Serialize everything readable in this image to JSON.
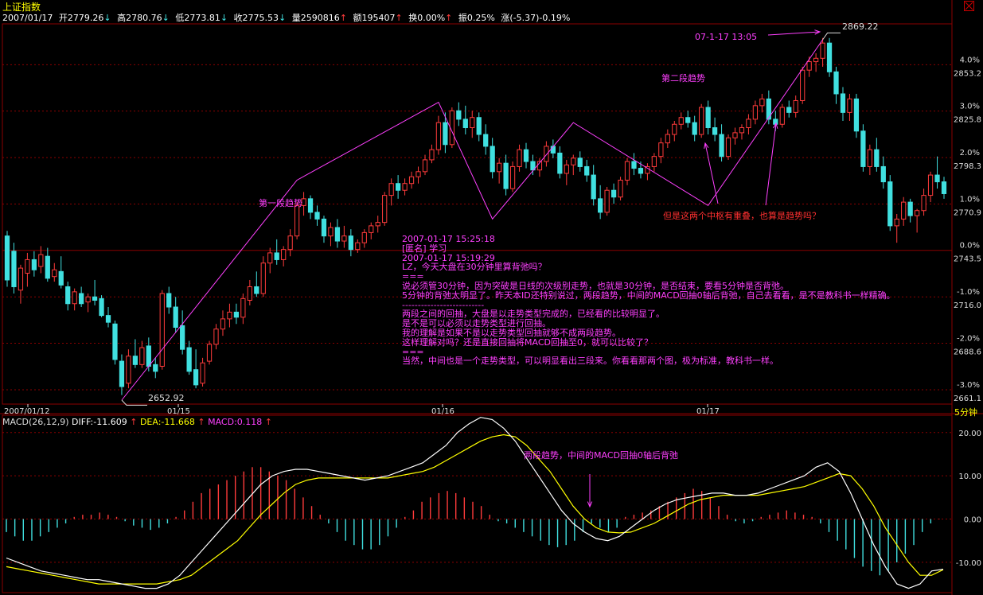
{
  "header": {
    "title": "上证指数",
    "date": "2007/01/17",
    "open_label": "开2779.26",
    "high_label": "高2780.76",
    "low_label": "低2773.81",
    "close_label": "收2775.53",
    "volume_label": "量2590816",
    "amount_label": "额195407",
    "turnover_label": "换0.00%",
    "amplitude_label": "振0.25%",
    "change_label": "涨(-5.37)-0.19%"
  },
  "colors": {
    "up": "#ff3b3b",
    "down": "#40e0e0",
    "grid": "#8b0000",
    "annotation": "#ff40ff",
    "note_red": "#ff3030",
    "axis_text": "#dddddd",
    "diff_line": "#ffffff",
    "dea_line": "#ffff00"
  },
  "annotations": {
    "low_price": "2652.92",
    "high_price": "2869.22",
    "high_time": "07-1-17  13:05",
    "first_trend": "第一段趋势",
    "second_trend": "第二段趋势",
    "hub_question": "但是这两个中枢有重叠，也算是趋势吗？",
    "macd_note": "两段趋势，中间的MACD回抽0轴后背弛"
  },
  "comment_lines": [
    "2007-01-17 15:25:18",
    "[匿名] 学习",
    "2007-01-17 15:19:29",
    "LZ，今天大盘在30分钟里算背弛吗？",
    "===",
    "说必须管30分钟，因为突破是日线的次级别走势，也就是30分钟，是否结束，要看5分钟是否背弛。",
    "5分钟的背弛太明显了。昨天本ID还特别说过，两段趋势，中间的MACD回抽0轴后背弛，自己去看看，是不是教科书一样精确。",
    "--------------------------",
    "两段之间的回抽，大盘是以走势类型完成的，已经看的比较明显了。",
    "是不是可以必须以走势类型进行回抽。",
    "我的理解是如果不是以走势类型回抽就够不成两段趋势。",
    "这样理解对吗？还是直接回抽将MACD回抽至0，就可以比较了？",
    "",
    "===",
    "当然，中间也是一个走势类型，可以明显看出三段来。你看看那两个图，极为标准，教科书一样。"
  ],
  "macd_header": {
    "name": "MACD(26,12,9)",
    "diff": "DIFF:-11.609",
    "dea": "DEA:-11.668",
    "macd": "MACD:0.118"
  },
  "period_label": "5分钟",
  "chart_data": [
    {
      "type": "candlestick",
      "title": "上证指数",
      "ylim": [
        2655,
        2875
      ],
      "right_axis_prices": [
        "2853.2",
        "2825.8",
        "2798.3",
        "2770.9",
        "2743.5",
        "2716.0",
        "2688.6",
        "2661.1"
      ],
      "right_axis_percents": [
        "4.0%",
        "3.0%",
        "2.0%",
        "1.0%",
        "0.0%",
        "-1.0%",
        "-2.0%",
        "-3.0%"
      ],
      "x_ticks": [
        "2007/01/12",
        "01/15",
        "01/16",
        "01/17"
      ],
      "trend_path": [
        2655,
        2785,
        2831,
        2762,
        2819,
        2770,
        2868
      ],
      "ohlc": [
        [
          2752,
          2755,
          2722,
          2726
        ],
        [
          2743,
          2748,
          2718,
          2722
        ],
        [
          2720,
          2735,
          2712,
          2733
        ],
        [
          2730,
          2742,
          2722,
          2738
        ],
        [
          2738,
          2743,
          2728,
          2732
        ],
        [
          2734,
          2746,
          2730,
          2741
        ],
        [
          2740,
          2745,
          2725,
          2727
        ],
        [
          2728,
          2736,
          2725,
          2732
        ],
        [
          2731,
          2740,
          2721,
          2723
        ],
        [
          2722,
          2725,
          2708,
          2712
        ],
        [
          2712,
          2721,
          2708,
          2719
        ],
        [
          2718,
          2722,
          2710,
          2712
        ],
        [
          2713,
          2718,
          2707,
          2716
        ],
        [
          2716,
          2726,
          2711,
          2714
        ],
        [
          2715,
          2717,
          2704,
          2705
        ],
        [
          2705,
          2710,
          2698,
          2701
        ],
        [
          2700,
          2702,
          2676,
          2679
        ],
        [
          2678,
          2682,
          2658,
          2663
        ],
        [
          2665,
          2685,
          2662,
          2681
        ],
        [
          2681,
          2691,
          2674,
          2676
        ],
        [
          2676,
          2690,
          2674,
          2686
        ],
        [
          2687,
          2692,
          2672,
          2675
        ],
        [
          2676,
          2680,
          2668,
          2672
        ],
        [
          2675,
          2720,
          2673,
          2718
        ],
        [
          2718,
          2722,
          2706,
          2710
        ],
        [
          2710,
          2716,
          2695,
          2698
        ],
        [
          2699,
          2708,
          2682,
          2685
        ],
        [
          2686,
          2690,
          2670,
          2672
        ],
        [
          2673,
          2685,
          2662,
          2664
        ],
        [
          2665,
          2680,
          2663,
          2677
        ],
        [
          2678,
          2690,
          2676,
          2688
        ],
        [
          2688,
          2700,
          2685,
          2697
        ],
        [
          2697,
          2708,
          2693,
          2703
        ],
        [
          2703,
          2712,
          2698,
          2707
        ],
        [
          2707,
          2712,
          2700,
          2704
        ],
        [
          2704,
          2718,
          2700,
          2715
        ],
        [
          2714,
          2726,
          2711,
          2722
        ],
        [
          2722,
          2731,
          2716,
          2718
        ],
        [
          2718,
          2740,
          2716,
          2736
        ],
        [
          2736,
          2745,
          2730,
          2742
        ],
        [
          2742,
          2750,
          2735,
          2738
        ],
        [
          2738,
          2746,
          2734,
          2744
        ],
        [
          2744,
          2756,
          2740,
          2752
        ],
        [
          2752,
          2772,
          2750,
          2770
        ],
        [
          2770,
          2778,
          2764,
          2774
        ],
        [
          2774,
          2776,
          2762,
          2766
        ],
        [
          2766,
          2770,
          2758,
          2762
        ],
        [
          2762,
          2764,
          2748,
          2752
        ],
        [
          2752,
          2760,
          2746,
          2757
        ],
        [
          2757,
          2762,
          2745,
          2749
        ],
        [
          2749,
          2758,
          2745,
          2752
        ],
        [
          2752,
          2756,
          2740,
          2744
        ],
        [
          2744,
          2750,
          2742,
          2748
        ],
        [
          2748,
          2756,
          2745,
          2754
        ],
        [
          2754,
          2760,
          2750,
          2758
        ],
        [
          2758,
          2764,
          2754,
          2760
        ],
        [
          2760,
          2778,
          2758,
          2776
        ],
        [
          2776,
          2786,
          2770,
          2783
        ],
        [
          2783,
          2788,
          2774,
          2779
        ],
        [
          2779,
          2786,
          2776,
          2783
        ],
        [
          2783,
          2790,
          2780,
          2787
        ],
        [
          2787,
          2793,
          2783,
          2790
        ],
        [
          2790,
          2800,
          2788,
          2797
        ],
        [
          2797,
          2806,
          2795,
          2803
        ],
        [
          2803,
          2823,
          2800,
          2819
        ],
        [
          2819,
          2825,
          2801,
          2806
        ],
        [
          2806,
          2828,
          2804,
          2826
        ],
        [
          2826,
          2831,
          2817,
          2821
        ],
        [
          2821,
          2829,
          2812,
          2816
        ],
        [
          2816,
          2826,
          2810,
          2822
        ],
        [
          2822,
          2825,
          2808,
          2812
        ],
        [
          2812,
          2818,
          2800,
          2805
        ],
        [
          2805,
          2810,
          2786,
          2790
        ],
        [
          2790,
          2798,
          2783,
          2795
        ],
        [
          2795,
          2800,
          2776,
          2780
        ],
        [
          2780,
          2796,
          2778,
          2793
        ],
        [
          2793,
          2806,
          2790,
          2803
        ],
        [
          2803,
          2807,
          2792,
          2796
        ],
        [
          2796,
          2800,
          2788,
          2791
        ],
        [
          2791,
          2798,
          2787,
          2796
        ],
        [
          2796,
          2808,
          2793,
          2805
        ],
        [
          2805,
          2809,
          2798,
          2801
        ],
        [
          2801,
          2805,
          2786,
          2789
        ],
        [
          2789,
          2797,
          2782,
          2794
        ],
        [
          2794,
          2800,
          2788,
          2798
        ],
        [
          2798,
          2802,
          2790,
          2793
        ],
        [
          2793,
          2797,
          2784,
          2788
        ],
        [
          2788,
          2794,
          2770,
          2774
        ],
        [
          2774,
          2782,
          2762,
          2766
        ],
        [
          2766,
          2781,
          2764,
          2779
        ],
        [
          2779,
          2783,
          2771,
          2775
        ],
        [
          2775,
          2787,
          2773,
          2785
        ],
        [
          2785,
          2798,
          2782,
          2796
        ],
        [
          2796,
          2801,
          2788,
          2792
        ],
        [
          2792,
          2796,
          2786,
          2789
        ],
        [
          2789,
          2795,
          2785,
          2793
        ],
        [
          2793,
          2801,
          2790,
          2799
        ],
        [
          2799,
          2810,
          2795,
          2807
        ],
        [
          2807,
          2815,
          2804,
          2812
        ],
        [
          2812,
          2820,
          2808,
          2818
        ],
        [
          2818,
          2825,
          2815,
          2822
        ],
        [
          2822,
          2826,
          2816,
          2819
        ],
        [
          2819,
          2823,
          2808,
          2812
        ],
        [
          2812,
          2830,
          2810,
          2828
        ],
        [
          2828,
          2832,
          2812,
          2816
        ],
        [
          2816,
          2822,
          2808,
          2812
        ],
        [
          2812,
          2818,
          2796,
          2799
        ],
        [
          2799,
          2812,
          2797,
          2810
        ],
        [
          2810,
          2816,
          2806,
          2813
        ],
        [
          2813,
          2818,
          2809,
          2816
        ],
        [
          2816,
          2824,
          2812,
          2821
        ],
        [
          2821,
          2832,
          2818,
          2829
        ],
        [
          2829,
          2836,
          2825,
          2833
        ],
        [
          2833,
          2838,
          2818,
          2821
        ],
        [
          2821,
          2826,
          2814,
          2818
        ],
        [
          2818,
          2830,
          2816,
          2828
        ],
        [
          2828,
          2832,
          2822,
          2825
        ],
        [
          2825,
          2835,
          2822,
          2832
        ],
        [
          2832,
          2852,
          2830,
          2850
        ],
        [
          2850,
          2858,
          2846,
          2855
        ],
        [
          2855,
          2860,
          2849,
          2857
        ],
        [
          2857,
          2869,
          2852,
          2866
        ],
        [
          2866,
          2869,
          2846,
          2849
        ],
        [
          2849,
          2852,
          2830,
          2836
        ],
        [
          2836,
          2840,
          2820,
          2825
        ],
        [
          2825,
          2836,
          2820,
          2833
        ],
        [
          2833,
          2836,
          2810,
          2814
        ],
        [
          2814,
          2818,
          2790,
          2793
        ],
        [
          2793,
          2806,
          2788,
          2803
        ],
        [
          2803,
          2810,
          2790,
          2793
        ],
        [
          2793,
          2799,
          2780,
          2784
        ],
        [
          2784,
          2788,
          2755,
          2758
        ],
        [
          2758,
          2765,
          2748,
          2762
        ],
        [
          2762,
          2775,
          2758,
          2772
        ],
        [
          2772,
          2774,
          2760,
          2764
        ],
        [
          2764,
          2768,
          2754,
          2767
        ],
        [
          2767,
          2780,
          2764,
          2776
        ],
        [
          2776,
          2790,
          2772,
          2788
        ],
        [
          2788,
          2799,
          2780,
          2784
        ],
        [
          2784,
          2787,
          2774,
          2777
        ]
      ]
    },
    {
      "type": "macd",
      "ylim": [
        -17,
        24
      ],
      "right_axis_labels": [
        "20.00",
        "10.00",
        "0.00",
        "-10.00"
      ],
      "diff": [
        -9,
        -10,
        -11,
        -12,
        -12.5,
        -13,
        -13.5,
        -14,
        -14,
        -14.5,
        -15,
        -15.5,
        -16,
        -16,
        -15,
        -13,
        -10,
        -7,
        -4,
        -1,
        2,
        5,
        8,
        10,
        11,
        11.5,
        11.5,
        11,
        10.5,
        10,
        9.5,
        9,
        9.5,
        10,
        11,
        12,
        13,
        15,
        17,
        20,
        22,
        23.5,
        23,
        21,
        18,
        14,
        10,
        6,
        2,
        -1,
        -3,
        -4.5,
        -5,
        -4,
        -2,
        0,
        2,
        3.5,
        4.5,
        5,
        5.5,
        6,
        6,
        5.5,
        5.5,
        6,
        7,
        8,
        9,
        10,
        12,
        13,
        11,
        6,
        0,
        -6,
        -11,
        -15,
        -16,
        -15,
        -12,
        -11.6
      ],
      "dea": [
        -11,
        -11.5,
        -12,
        -12.5,
        -13,
        -13.5,
        -14,
        -14.5,
        -15,
        -15,
        -15,
        -15,
        -15,
        -15,
        -14.5,
        -14,
        -13,
        -11,
        -9,
        -7,
        -5,
        -2,
        1,
        3.5,
        6,
        8,
        9,
        9.5,
        9.5,
        9.5,
        9.5,
        9.5,
        9.5,
        9.5,
        10,
        10.5,
        11,
        12,
        13.5,
        15,
        16.5,
        18,
        19,
        19.5,
        19,
        17,
        14,
        11,
        7,
        3,
        0,
        -2,
        -3,
        -3.2,
        -3,
        -2,
        -1,
        0.5,
        2,
        3.5,
        4.5,
        5,
        5.5,
        5.5,
        5.5,
        5.5,
        6,
        6.5,
        7,
        7.5,
        8.5,
        9.5,
        10.5,
        10,
        7,
        3,
        -2,
        -6,
        -10,
        -13,
        -13,
        -11.7
      ],
      "bars": [
        -3,
        -4,
        -5,
        -5,
        -4,
        -3,
        -2,
        -1,
        0.5,
        1,
        1,
        1.5,
        1,
        0.5,
        -0.5,
        -1.5,
        -2,
        -2.5,
        -2,
        -1,
        0.5,
        2,
        4,
        6,
        7,
        8,
        9,
        10,
        11,
        12,
        12,
        11,
        10,
        9,
        7,
        5,
        3,
        1,
        -1,
        -3,
        -5,
        -6,
        -7,
        -7,
        -6,
        -4,
        -2,
        0.5,
        2,
        4,
        5,
        6,
        6.5,
        6,
        5,
        4,
        3,
        1,
        -0.5,
        -1,
        -2,
        -3,
        -4,
        -5,
        -6,
        -6.5,
        -6,
        -5,
        -3,
        -1,
        -2,
        -3,
        -2,
        0.5,
        1,
        1.5,
        2,
        3,
        4,
        5,
        6,
        7,
        6.5,
        5,
        3,
        1,
        -0.5,
        -1,
        -0.5,
        0.5,
        1,
        1.5,
        2,
        1.5,
        1,
        0.5,
        -1,
        -3,
        -5,
        -7,
        -9,
        -11,
        -12,
        -13,
        -12,
        -10,
        -8,
        -6,
        -3,
        -1,
        0.1
      ]
    }
  ]
}
